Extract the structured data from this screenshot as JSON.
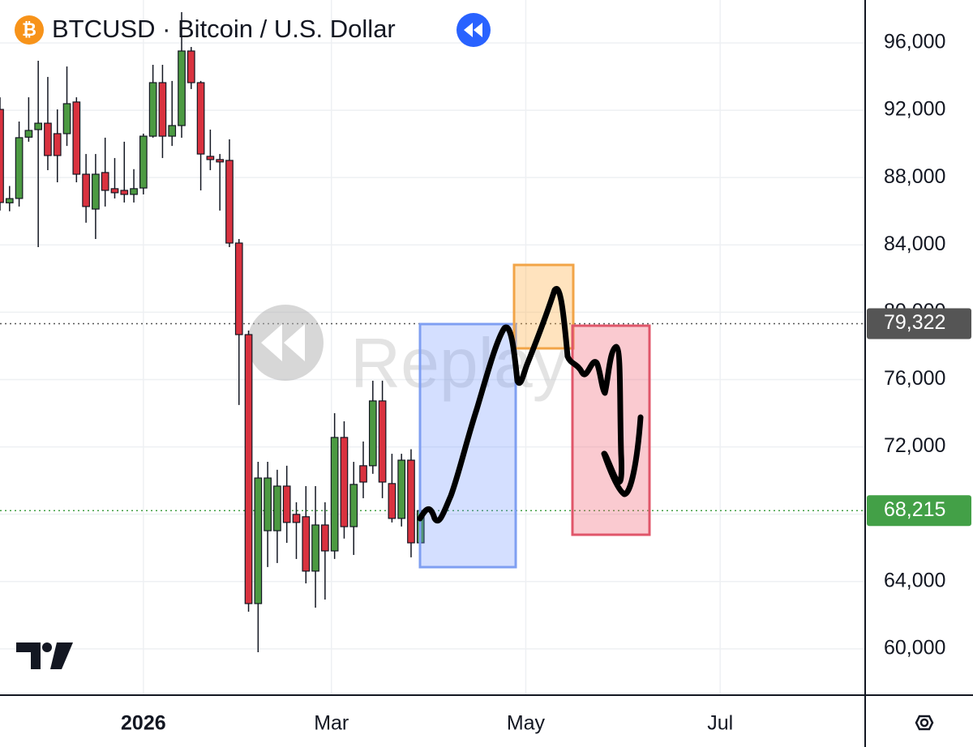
{
  "chart_data": {
    "type": "candlestick",
    "title": "BTCUSD · Bitcoin / U.S. Dollar",
    "icon": "₿",
    "watermark": "Replay",
    "x": [
      -45,
      -42,
      -39,
      -36,
      -33,
      -30,
      -27,
      -24,
      -21,
      -18,
      -15,
      -12,
      -9,
      -6,
      -3,
      0,
      3,
      6,
      9,
      12,
      15,
      18,
      21,
      24,
      27,
      30,
      33,
      36,
      39,
      42,
      45,
      48,
      51,
      54,
      57,
      60,
      63,
      66,
      69,
      72,
      75,
      78,
      81,
      84,
      87
    ],
    "open": [
      92050,
      86500,
      86760,
      90400,
      90850,
      91230,
      90610,
      90610,
      92490,
      88200,
      86130,
      88300,
      87340,
      87240,
      87000,
      87380,
      90460,
      93640,
      90460,
      91090,
      95520,
      93640,
      89260,
      89070,
      89020,
      84110,
      78670,
      62690,
      67020,
      67020,
      69670,
      67990,
      67850,
      64620,
      67360,
      65820,
      72560,
      67260,
      70880,
      70880,
      74730,
      69820,
      67750,
      71210,
      66300
    ],
    "high": [
      92770,
      87500,
      91330,
      92770,
      94940,
      93980,
      92050,
      94600,
      92770,
      89400,
      89400,
      90370,
      89160,
      90130,
      88500,
      90610,
      94700,
      94700,
      93740,
      97830,
      95760,
      93740,
      90850,
      89400,
      90270,
      84350,
      78910,
      71110,
      71110,
      70640,
      70880,
      68710,
      69670,
      69670,
      68710,
      74000,
      73520,
      71110,
      72320,
      75930,
      75930,
      71590,
      71590,
      71860,
      68470
    ],
    "low": [
      86040,
      86000,
      86280,
      90130,
      83870,
      88440,
      87720,
      89880,
      87720,
      85320,
      84350,
      86280,
      86760,
      86520,
      86520,
      87000,
      90370,
      89160,
      89880,
      90370,
      93260,
      87240,
      88440,
      86040,
      83870,
      74490,
      62210,
      59800,
      64860,
      65100,
      66300,
      65340,
      63890,
      62450,
      62930,
      65340,
      66550,
      65580,
      68950,
      70400,
      68950,
      67510,
      67270,
      65440,
      65100
    ],
    "close": [
      86520,
      86750,
      90370,
      90800,
      91230,
      89310,
      89310,
      92390,
      88200,
      86280,
      88200,
      87240,
      87100,
      87000,
      87340,
      90460,
      93640,
      90460,
      91090,
      95520,
      93640,
      89400,
      89070,
      88930,
      84110,
      78670,
      62690,
      70150,
      70150,
      69670,
      67510,
      67510,
      64620,
      67360,
      65820,
      72560,
      67260,
      69770,
      69910,
      74730,
      69910,
      67750,
      71210,
      66300,
      68215
    ],
    "up_color": "#4c9a42",
    "down_color": "#d9323f",
    "xlim": [
      -45,
      226.5
    ],
    "ylim": [
      57250,
      98550
    ],
    "xticks": [
      {
        "value": 0,
        "label": "2026"
      },
      {
        "value": 59,
        "label": "Mar"
      },
      {
        "value": 120,
        "label": "May"
      },
      {
        "value": 181,
        "label": "Jul"
      }
    ],
    "yticks": [
      {
        "value": 60000,
        "label": "60,000"
      },
      {
        "value": 64000,
        "label": "64,000"
      },
      {
        "value": 68000,
        "label": "68,000"
      },
      {
        "value": 72000,
        "label": "72,000"
      },
      {
        "value": 76000,
        "label": "76,000"
      },
      {
        "value": 80000,
        "label": "80,000"
      },
      {
        "value": 84000,
        "label": "84,000"
      },
      {
        "value": 88000,
        "label": "88,000"
      },
      {
        "value": 92000,
        "label": "92,000"
      },
      {
        "value": 96000,
        "label": "96,000"
      }
    ],
    "grid": true,
    "price_lines": [
      {
        "value": 79322,
        "label": "79,322",
        "color": "#555555"
      },
      {
        "value": 68215,
        "label": "68,215",
        "color": "#43a047"
      }
    ]
  }
}
